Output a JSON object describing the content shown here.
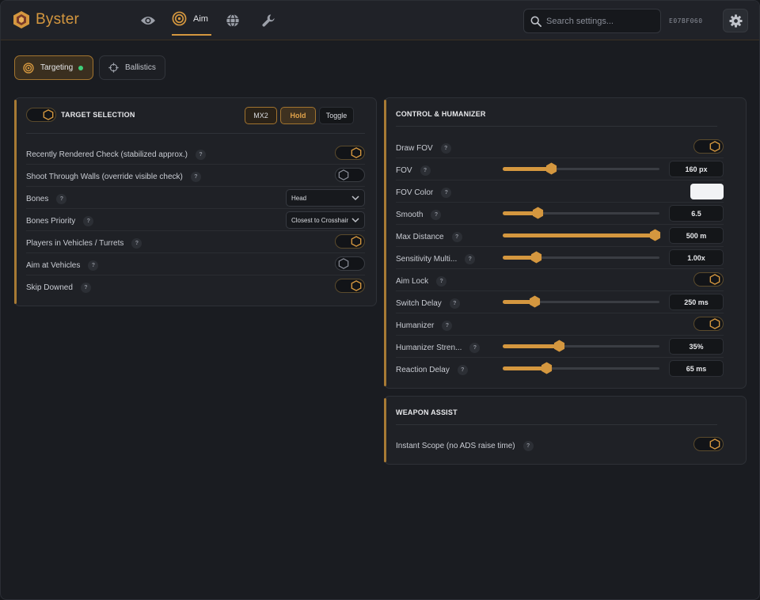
{
  "colors": {
    "accent": "#d4973f",
    "background": "#1a1c21",
    "panel": "#1f2126",
    "online": "#3fcf7a",
    "fov_color": "#f2f3f5"
  },
  "header": {
    "app_name": "Byster",
    "nav": [
      {
        "icon": "eye-icon"
      },
      {
        "icon": "target-icon",
        "label": "Aim",
        "active": true
      },
      {
        "icon": "globe-icon"
      },
      {
        "icon": "wrench-icon"
      }
    ],
    "search_placeholder": "Search settings...",
    "hwid": "E07BF060",
    "settings_icon": "gear-icon"
  },
  "subtabs": [
    {
      "label": "Targeting",
      "icon": "target-icon",
      "active": true,
      "status": "online"
    },
    {
      "label": "Ballistics",
      "icon": "crosshair-icon",
      "active": false
    }
  ],
  "target_selection": {
    "title": "TARGET SELECTION",
    "enabled": true,
    "modes": [
      {
        "label": "MX2",
        "active": false
      },
      {
        "label": "Hold",
        "active": true
      },
      {
        "label": "Toggle",
        "active": false
      }
    ],
    "rows": [
      {
        "label": "Recently Rendered Check (stabilized approx.)",
        "type": "toggle",
        "on": true
      },
      {
        "label": "Shoot Through Walls (override visible check)",
        "type": "toggle",
        "on": false
      },
      {
        "label": "Bones",
        "type": "select",
        "value": "Head"
      },
      {
        "label": "Bones Priority",
        "type": "select",
        "value": "Closest to Crosshair"
      },
      {
        "label": "Players in Vehicles / Turrets",
        "type": "toggle",
        "on": true
      },
      {
        "label": "Aim at Vehicles",
        "type": "toggle",
        "on": false
      },
      {
        "label": "Skip Downed",
        "type": "toggle",
        "on": true
      }
    ]
  },
  "control_humanizer": {
    "title": "CONTROL & HUMANIZER",
    "rows": [
      {
        "label": "Draw FOV",
        "type": "toggle",
        "on": true
      },
      {
        "label": "FOV",
        "type": "slider",
        "fraction": 0.31,
        "value": "160 px"
      },
      {
        "label": "FOV Color",
        "type": "color"
      },
      {
        "label": "Smooth",
        "type": "slider",
        "fraction": 0.22,
        "value": "6.5"
      },
      {
        "label": "Max Distance",
        "type": "slider",
        "fraction": 0.97,
        "value": "500 m"
      },
      {
        "label": "Sensitivity Multi...",
        "type": "slider",
        "fraction": 0.21,
        "value": "1.00x"
      },
      {
        "label": "Aim Lock",
        "type": "toggle",
        "on": true
      },
      {
        "label": "Switch Delay",
        "type": "slider",
        "fraction": 0.2,
        "value": "250 ms"
      },
      {
        "label": "Humanizer",
        "type": "toggle",
        "on": true
      },
      {
        "label": "Humanizer Stren...",
        "type": "slider",
        "fraction": 0.36,
        "value": "35%"
      },
      {
        "label": "Reaction Delay",
        "type": "slider",
        "fraction": 0.28,
        "value": "65 ms"
      }
    ]
  },
  "weapon_assist": {
    "title": "WEAPON ASSIST",
    "rows": [
      {
        "label": "Instant Scope (no ADS raise time)",
        "type": "toggle",
        "on": true
      }
    ]
  }
}
